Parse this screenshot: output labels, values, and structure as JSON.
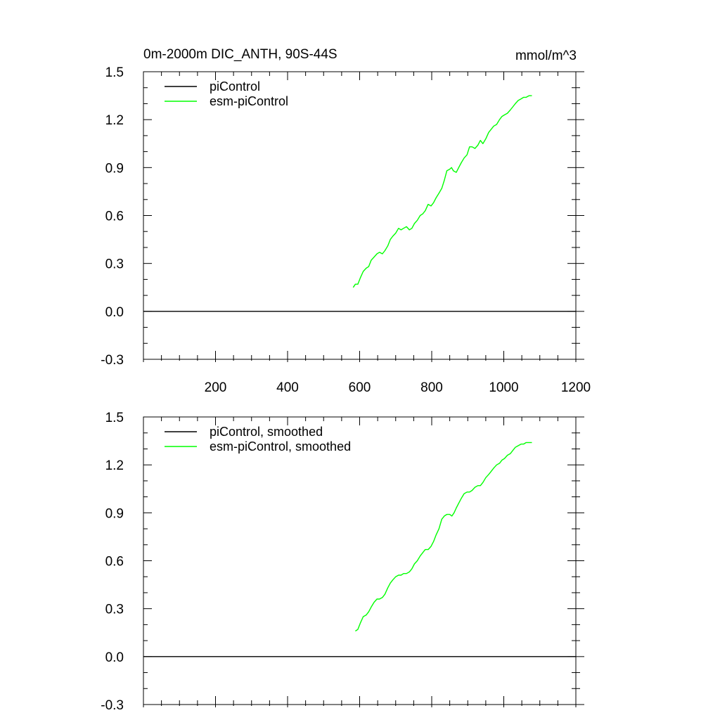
{
  "header": {
    "title": "0m-2000m DIC_ANTH, 90S-44S",
    "units": "mmol/m^3"
  },
  "colors": {
    "piControl": "#000000",
    "esm_piControl": "#00ff00"
  },
  "chart_data": [
    {
      "type": "line",
      "panel": "top",
      "xlim": [
        0,
        1200
      ],
      "ylim": [
        -0.3,
        1.5
      ],
      "x_ticks": [
        "200",
        "400",
        "600",
        "800",
        "1000",
        "1200"
      ],
      "y_ticks": [
        "-0.3",
        "0.0",
        "0.3",
        "0.6",
        "0.9",
        "1.2",
        "1.5"
      ],
      "legend_position": "top-left",
      "series": [
        {
          "name": "piControl",
          "x": [
            0,
            1200
          ],
          "y": [
            0.0,
            0.0
          ]
        },
        {
          "name": "esm-piControl",
          "x": [
            582,
            588,
            595,
            602,
            610,
            618,
            625,
            632,
            640,
            648,
            655,
            663,
            670,
            678,
            685,
            692,
            700,
            708,
            715,
            722,
            730,
            738,
            745,
            752,
            760,
            768,
            775,
            782,
            790,
            798,
            805,
            812,
            820,
            828,
            835,
            842,
            850,
            855,
            860,
            868,
            875,
            882,
            890,
            898,
            905,
            912,
            920,
            928,
            935,
            942,
            950,
            958,
            965,
            972,
            980,
            988,
            995,
            1002,
            1010,
            1018,
            1025,
            1032,
            1040,
            1048,
            1055,
            1062,
            1070,
            1078
          ],
          "y": [
            0.15,
            0.17,
            0.17,
            0.21,
            0.25,
            0.27,
            0.28,
            0.32,
            0.34,
            0.36,
            0.37,
            0.36,
            0.38,
            0.41,
            0.45,
            0.47,
            0.49,
            0.52,
            0.51,
            0.52,
            0.53,
            0.51,
            0.52,
            0.55,
            0.57,
            0.6,
            0.61,
            0.63,
            0.67,
            0.66,
            0.68,
            0.71,
            0.74,
            0.77,
            0.82,
            0.88,
            0.89,
            0.9,
            0.88,
            0.87,
            0.9,
            0.93,
            0.96,
            0.98,
            1.03,
            1.03,
            1.02,
            1.04,
            1.07,
            1.05,
            1.08,
            1.12,
            1.14,
            1.16,
            1.17,
            1.2,
            1.22,
            1.23,
            1.24,
            1.26,
            1.28,
            1.3,
            1.32,
            1.33,
            1.34,
            1.34,
            1.35,
            1.35
          ]
        }
      ]
    },
    {
      "type": "line",
      "panel": "bottom",
      "xlim": [
        0,
        1200
      ],
      "ylim": [
        -0.3,
        1.5
      ],
      "y_ticks": [
        "-0.3",
        "0.0",
        "0.3",
        "0.6",
        "0.9",
        "1.2",
        "1.5"
      ],
      "legend_position": "top-left",
      "series": [
        {
          "name": "piControl, smoothed",
          "x": [
            0,
            1200
          ],
          "y": [
            0.0,
            0.0
          ]
        },
        {
          "name": "esm-piControl, smoothed",
          "x": [
            588,
            595,
            602,
            610,
            618,
            625,
            632,
            640,
            648,
            655,
            663,
            670,
            678,
            685,
            692,
            700,
            708,
            715,
            722,
            730,
            738,
            745,
            752,
            760,
            768,
            775,
            782,
            790,
            798,
            805,
            812,
            820,
            828,
            835,
            842,
            850,
            856,
            862,
            868,
            875,
            882,
            890,
            898,
            905,
            912,
            920,
            928,
            935,
            942,
            950,
            958,
            965,
            972,
            980,
            988,
            995,
            1002,
            1010,
            1018,
            1025,
            1032,
            1040,
            1048,
            1055,
            1062,
            1070,
            1078
          ],
          "y": [
            0.16,
            0.17,
            0.21,
            0.25,
            0.26,
            0.28,
            0.31,
            0.34,
            0.36,
            0.36,
            0.37,
            0.39,
            0.43,
            0.46,
            0.48,
            0.5,
            0.51,
            0.51,
            0.52,
            0.52,
            0.53,
            0.55,
            0.58,
            0.6,
            0.63,
            0.65,
            0.67,
            0.67,
            0.69,
            0.72,
            0.76,
            0.8,
            0.86,
            0.88,
            0.89,
            0.89,
            0.88,
            0.9,
            0.93,
            0.96,
            0.99,
            1.02,
            1.03,
            1.03,
            1.04,
            1.06,
            1.07,
            1.07,
            1.09,
            1.12,
            1.14,
            1.16,
            1.18,
            1.2,
            1.21,
            1.23,
            1.24,
            1.26,
            1.27,
            1.29,
            1.31,
            1.32,
            1.33,
            1.33,
            1.34,
            1.34,
            1.34
          ]
        }
      ]
    }
  ]
}
